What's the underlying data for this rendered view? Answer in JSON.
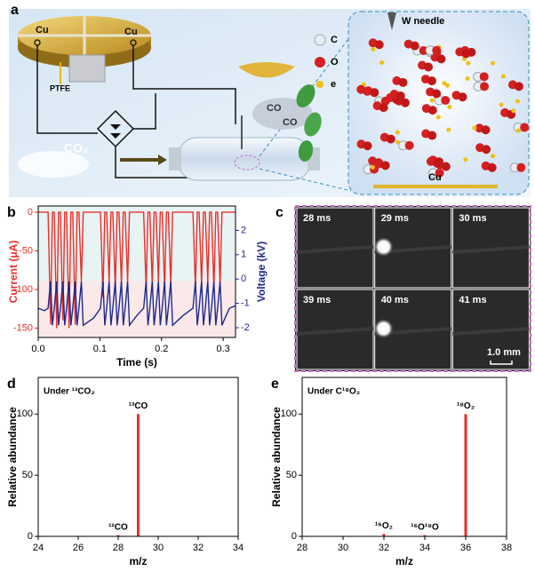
{
  "schematic": {
    "panel_label": "a",
    "disc_label_left": "Cu",
    "disc_label_right": "Cu",
    "insulator_label": "PTFE",
    "gas_in_label": "CO₂",
    "product_labels": [
      "CO",
      "CO"
    ],
    "legend_labels": [
      "C",
      "O",
      "e"
    ],
    "needle_label": "W needle",
    "electrode_label": "Cu"
  },
  "frames": {
    "panel_label": "c",
    "labels": [
      "28 ms",
      "29 ms",
      "30 ms",
      "39 ms",
      "40 ms",
      "41 ms"
    ],
    "scale_bar": "1.0 mm"
  },
  "chart_data": [
    {
      "type": "line",
      "panel_label": "b",
      "x_label": "Time (s)",
      "y_label": "Current (μA)",
      "y2_label": "Voltage (kV)",
      "xlim": [
        0,
        0.32
      ],
      "xticks": [
        {
          "value": 0,
          "label": "0.0"
        },
        0.1,
        0.2,
        0.3
      ],
      "ylim": [
        -162,
        8
      ],
      "yticks": [
        0,
        -50,
        -100,
        -150
      ],
      "y2lim": [
        -2.4,
        3.0
      ],
      "y2ticks": [
        2,
        1,
        0,
        -1,
        -2
      ],
      "x": [
        0,
        0.01,
        0.016,
        0.02,
        0.023,
        0.026,
        0.03,
        0.033,
        0.036,
        0.04,
        0.043,
        0.046,
        0.05,
        0.053,
        0.056,
        0.06,
        0.063,
        0.066,
        0.07,
        0.073,
        0.09,
        0.101,
        0.105,
        0.108,
        0.111,
        0.115,
        0.118,
        0.121,
        0.125,
        0.128,
        0.131,
        0.135,
        0.138,
        0.141,
        0.145,
        0.148,
        0.16,
        0.171,
        0.175,
        0.178,
        0.181,
        0.185,
        0.188,
        0.191,
        0.195,
        0.198,
        0.201,
        0.205,
        0.208,
        0.211,
        0.215,
        0.218,
        0.235,
        0.251,
        0.255,
        0.258,
        0.261,
        0.265,
        0.268,
        0.271,
        0.275,
        0.278,
        0.281,
        0.285,
        0.288,
        0.291,
        0.295,
        0.298,
        0.31,
        0.32
      ],
      "series": [
        {
          "name": "Current",
          "color": "#e8302a",
          "values": [
            0,
            0,
            0,
            -145,
            0,
            0,
            -150,
            0,
            0,
            -140,
            0,
            0,
            -150,
            0,
            0,
            -145,
            0,
            0,
            -90,
            0,
            0,
            0,
            -110,
            0,
            0,
            -90,
            0,
            0,
            -100,
            0,
            0,
            -95,
            0,
            0,
            -90,
            0,
            0,
            0,
            -100,
            0,
            0,
            -95,
            0,
            0,
            -90,
            0,
            0,
            -100,
            0,
            0,
            -95,
            0,
            0,
            0,
            -100,
            0,
            0,
            -95,
            0,
            0,
            -90,
            0,
            0,
            -100,
            0,
            0,
            -95,
            0,
            0,
            0
          ]
        },
        {
          "name": "Voltage",
          "color": "#1f2a8a",
          "axis": "y2",
          "values": [
            -1.2,
            -1.3,
            -1.2,
            -0.1,
            -1.9,
            -1.2,
            -0.1,
            -1.9,
            -1.2,
            -0.1,
            -1.9,
            -1.2,
            -0.1,
            -1.9,
            -1.2,
            -0.1,
            -1.9,
            -1.2,
            -0.1,
            -1.9,
            -1.6,
            -1.2,
            -0.1,
            -1.9,
            -1.2,
            -0.1,
            -1.9,
            -1.2,
            -0.1,
            -1.9,
            -1.2,
            -0.1,
            -1.9,
            -1.2,
            -0.1,
            -1.9,
            -1.5,
            -1.2,
            -0.1,
            -1.9,
            -1.2,
            -0.1,
            -1.9,
            -1.2,
            -0.1,
            -1.9,
            -1.2,
            -0.1,
            -1.9,
            -1.2,
            -0.1,
            -1.9,
            -1.5,
            -1.2,
            -0.1,
            -1.9,
            -1.2,
            -0.1,
            -1.9,
            -1.2,
            -0.1,
            -1.9,
            -1.2,
            -0.1,
            -1.9,
            -1.2,
            -0.1,
            -1.9,
            -1.2,
            -1.1
          ]
        }
      ]
    },
    {
      "type": "bar",
      "panel_label": "d",
      "annotation": "Under ¹³CO₂",
      "x_label": "m/z",
      "y_label": "Relative abundance",
      "color": "#e8302a",
      "xlim": [
        24,
        34
      ],
      "xticks": [
        24,
        26,
        28,
        30,
        32,
        34
      ],
      "ylim": [
        0,
        130
      ],
      "yticks": [
        0,
        50,
        100
      ],
      "x": [
        28,
        29
      ],
      "values": [
        1,
        100
      ],
      "peak_labels": [
        "¹²CO",
        "¹³CO"
      ]
    },
    {
      "type": "bar",
      "panel_label": "e",
      "annotation": "Under C¹⁸O₂",
      "x_label": "m/z",
      "y_label": "Relative abundance",
      "color": "#e8302a",
      "xlim": [
        28,
        38
      ],
      "xticks": [
        28,
        30,
        32,
        34,
        36,
        38
      ],
      "ylim": [
        0,
        130
      ],
      "yticks": [
        0,
        50,
        100
      ],
      "x": [
        32,
        34,
        36
      ],
      "values": [
        2,
        1,
        100
      ],
      "peak_labels": [
        "¹⁶O₂",
        "¹⁶O¹⁸O",
        "¹⁸O₂"
      ]
    }
  ]
}
